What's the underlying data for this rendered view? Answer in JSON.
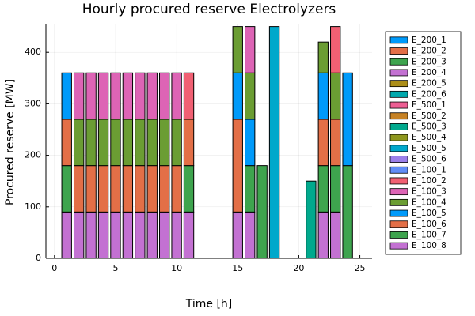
{
  "chart_data": {
    "type": "bar",
    "stacked": true,
    "title": "Hourly procured reserve Electrolyzers",
    "x_label": "Time [h]",
    "y_label": "Procured reserve [MW]",
    "x": [
      1,
      2,
      3,
      4,
      5,
      6,
      7,
      8,
      9,
      10,
      11,
      12,
      13,
      14,
      15,
      16,
      17,
      18,
      19,
      20,
      21,
      22,
      23,
      24
    ],
    "xlim": [
      -0.7,
      26
    ],
    "xticks": [
      0,
      5,
      10,
      15,
      20,
      25
    ],
    "ylim": [
      0,
      454
    ],
    "yticks": [
      0,
      100,
      200,
      300,
      400
    ],
    "grid": true,
    "legend": "right",
    "series": [
      {
        "name": "E_200_1",
        "color": "#009AFA",
        "values": [
          0,
          0,
          0,
          0,
          0,
          0,
          0,
          0,
          0,
          0,
          0,
          0,
          0,
          0,
          0,
          0,
          0,
          0,
          0,
          0,
          0,
          0,
          0,
          0
        ]
      },
      {
        "name": "E_200_2",
        "color": "#E36F47",
        "values": [
          0,
          0,
          0,
          0,
          0,
          0,
          0,
          0,
          0,
          0,
          0,
          0,
          0,
          0,
          0,
          0,
          0,
          0,
          0,
          0,
          0,
          0,
          0,
          0
        ]
      },
      {
        "name": "E_200_3",
        "color": "#3EA44E",
        "values": [
          0,
          0,
          0,
          0,
          0,
          0,
          0,
          0,
          0,
          0,
          0,
          0,
          0,
          0,
          0,
          0,
          0,
          0,
          0,
          0,
          0,
          0,
          0,
          0
        ]
      },
      {
        "name": "E_200_4",
        "color": "#C371D2",
        "values": [
          0,
          0,
          0,
          0,
          0,
          0,
          0,
          0,
          0,
          0,
          0,
          0,
          0,
          0,
          0,
          0,
          0,
          0,
          0,
          0,
          0,
          0,
          0,
          0
        ]
      },
      {
        "name": "E_200_5",
        "color": "#AC8E18",
        "values": [
          0,
          0,
          0,
          0,
          0,
          0,
          0,
          0,
          0,
          0,
          0,
          0,
          0,
          0,
          0,
          0,
          0,
          0,
          0,
          0,
          0,
          0,
          0,
          0
        ]
      },
      {
        "name": "E_200_6",
        "color": "#00A9AD",
        "values": [
          0,
          0,
          0,
          0,
          0,
          0,
          0,
          0,
          0,
          0,
          0,
          0,
          0,
          0,
          0,
          0,
          0,
          0,
          0,
          0,
          0,
          0,
          0,
          0
        ]
      },
      {
        "name": "E_500_1",
        "color": "#ED5E93",
        "values": [
          0,
          0,
          0,
          0,
          0,
          0,
          0,
          0,
          0,
          0,
          0,
          0,
          0,
          0,
          0,
          0,
          0,
          0,
          0,
          0,
          0,
          0,
          0,
          0
        ]
      },
      {
        "name": "E_500_2",
        "color": "#C68225",
        "values": [
          0,
          0,
          0,
          0,
          0,
          0,
          0,
          0,
          0,
          0,
          0,
          0,
          0,
          0,
          0,
          0,
          0,
          0,
          0,
          0,
          0,
          0,
          0,
          0
        ]
      },
      {
        "name": "E_500_3",
        "color": "#00A98D",
        "values": [
          0,
          0,
          0,
          0,
          0,
          0,
          0,
          0,
          0,
          0,
          0,
          0,
          0,
          0,
          0,
          0,
          0,
          0,
          0,
          0,
          150,
          0,
          0,
          0
        ]
      },
      {
        "name": "E_500_4",
        "color": "#8E971E",
        "values": [
          0,
          0,
          0,
          0,
          0,
          0,
          0,
          0,
          0,
          0,
          0,
          0,
          0,
          0,
          0,
          0,
          0,
          0,
          0,
          0,
          0,
          0,
          0,
          0
        ]
      },
      {
        "name": "E_500_5",
        "color": "#00A8CB",
        "values": [
          0,
          0,
          0,
          0,
          0,
          0,
          0,
          0,
          0,
          0,
          0,
          0,
          0,
          0,
          0,
          0,
          0,
          450,
          0,
          0,
          0,
          0,
          0,
          0
        ]
      },
      {
        "name": "E_500_6",
        "color": "#9B7FE9",
        "values": [
          0,
          0,
          0,
          0,
          0,
          0,
          0,
          0,
          0,
          0,
          0,
          0,
          0,
          0,
          0,
          0,
          0,
          0,
          0,
          0,
          0,
          0,
          0,
          0
        ]
      },
      {
        "name": "E_100_1",
        "color": "#618DF6",
        "values": [
          0,
          0,
          0,
          0,
          0,
          0,
          0,
          0,
          0,
          0,
          0,
          0,
          0,
          0,
          0,
          0,
          0,
          0,
          0,
          0,
          0,
          0,
          0,
          0
        ]
      },
      {
        "name": "E_100_2",
        "color": "#F16073",
        "values": [
          0,
          0,
          0,
          0,
          0,
          0,
          0,
          0,
          0,
          0,
          90,
          0,
          0,
          0,
          0,
          0,
          0,
          0,
          0,
          0,
          0,
          0,
          90,
          0
        ]
      },
      {
        "name": "E_100_3",
        "color": "#DD64B5",
        "values": [
          0,
          90,
          90,
          90,
          90,
          90,
          90,
          90,
          90,
          90,
          0,
          0,
          0,
          0,
          0,
          90,
          0,
          0,
          0,
          0,
          0,
          0,
          0,
          0
        ]
      },
      {
        "name": "E_100_4",
        "color": "#6B9D33",
        "values": [
          0,
          90,
          90,
          90,
          90,
          90,
          90,
          90,
          90,
          90,
          0,
          0,
          0,
          0,
          90,
          90,
          0,
          0,
          0,
          0,
          0,
          60,
          90,
          0
        ]
      },
      {
        "name": "E_100_5",
        "color": "#009AFA",
        "values": [
          90,
          0,
          0,
          0,
          0,
          0,
          0,
          0,
          0,
          0,
          0,
          0,
          0,
          0,
          90,
          90,
          0,
          0,
          0,
          0,
          0,
          90,
          0,
          180
        ]
      },
      {
        "name": "E_100_6",
        "color": "#E36F47",
        "values": [
          90,
          90,
          90,
          90,
          90,
          90,
          90,
          90,
          90,
          90,
          90,
          0,
          0,
          0,
          180,
          0,
          0,
          0,
          0,
          0,
          0,
          90,
          90,
          0
        ]
      },
      {
        "name": "E_100_7",
        "color": "#3EA44E",
        "values": [
          90,
          0,
          0,
          0,
          0,
          0,
          0,
          0,
          0,
          0,
          90,
          0,
          0,
          0,
          0,
          90,
          180,
          0,
          0,
          0,
          0,
          90,
          90,
          180
        ]
      },
      {
        "name": "E_100_8",
        "color": "#C371D2",
        "values": [
          90,
          90,
          90,
          90,
          90,
          90,
          90,
          90,
          90,
          90,
          90,
          0,
          0,
          0,
          90,
          90,
          0,
          0,
          0,
          0,
          0,
          90,
          90,
          0
        ]
      }
    ]
  }
}
